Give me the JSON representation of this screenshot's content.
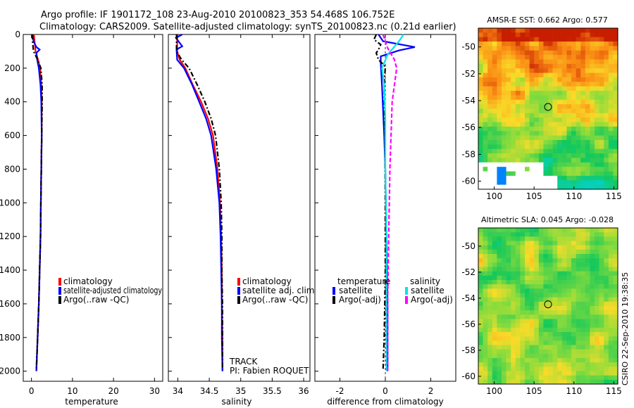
{
  "header": {
    "title_line1": "Argo profile: IF 1901172_108 23-Aug-2010 20100823_353 54.468S 106.752E",
    "title_line2": "Climatology: CARS2009. Satellite-adjusted climatology: synTS_20100823.nc (0.21d earlier)"
  },
  "colors": {
    "climatology": "#ff0000",
    "satellite": "#0000ff",
    "argo": "#000000",
    "salinity_satellite": "#00e5e5",
    "salinity_argo": "#ff00ff"
  },
  "chart_data": [
    {
      "id": "temperature",
      "type": "line",
      "xlabel": "temperature",
      "ylabel": "",
      "xlim": [
        -2,
        32
      ],
      "ylim": [
        2060,
        0
      ],
      "y_reversed": true,
      "xticks": [
        0,
        10,
        20,
        30
      ],
      "xtick_labels": [
        "0",
        "10",
        "20",
        "30"
      ],
      "yticks": [
        0,
        200,
        400,
        600,
        800,
        1000,
        1200,
        1400,
        1600,
        1800,
        2000
      ],
      "ytick_labels": [
        "0",
        "200",
        "400",
        "600",
        "800",
        "1000",
        "1200",
        "1400",
        "1600",
        "1800",
        "2000"
      ],
      "series": [
        {
          "name": "climatology",
          "style": "solid",
          "color_key": "climatology",
          "points": [
            [
              0.6,
              0
            ],
            [
              0.8,
              50
            ],
            [
              1.0,
              100
            ],
            [
              1.6,
              150
            ],
            [
              2.1,
              200
            ],
            [
              2.4,
              300
            ],
            [
              2.5,
              400
            ],
            [
              2.5,
              600
            ],
            [
              2.4,
              800
            ],
            [
              2.3,
              1000
            ],
            [
              2.2,
              1200
            ],
            [
              2.0,
              1400
            ],
            [
              1.8,
              1600
            ],
            [
              1.5,
              1800
            ],
            [
              1.2,
              2000
            ]
          ]
        },
        {
          "name": "satellite-adjusted climatology",
          "style": "solid",
          "color_key": "satellite",
          "points": [
            [
              0.3,
              0
            ],
            [
              0.5,
              40
            ],
            [
              1.2,
              75
            ],
            [
              2.0,
              90
            ],
            [
              1.2,
              110
            ],
            [
              1.4,
              150
            ],
            [
              1.8,
              200
            ],
            [
              2.2,
              300
            ],
            [
              2.4,
              400
            ],
            [
              2.5,
              600
            ],
            [
              2.4,
              800
            ],
            [
              2.3,
              1000
            ],
            [
              2.2,
              1200
            ],
            [
              2.0,
              1400
            ],
            [
              1.8,
              1600
            ],
            [
              1.5,
              1800
            ],
            [
              1.2,
              2000
            ]
          ]
        },
        {
          "name": "Argo(..raw -QC)",
          "style": "dashdot",
          "color_key": "argo",
          "points": [
            [
              0.2,
              0
            ],
            [
              0.3,
              50
            ],
            [
              0.5,
              100
            ],
            [
              1.5,
              150
            ],
            [
              2.3,
              200
            ],
            [
              2.6,
              300
            ],
            [
              2.6,
              400
            ],
            [
              2.5,
              600
            ],
            [
              2.4,
              800
            ],
            [
              2.3,
              1000
            ],
            [
              2.2,
              1200
            ],
            [
              2.0,
              1400
            ],
            [
              1.8,
              1600
            ],
            [
              1.5,
              1800
            ],
            [
              1.2,
              1990
            ]
          ]
        }
      ],
      "legend": {
        "position": "bottom-right",
        "entries": [
          "climatology",
          "satellite-adjusted climatology",
          "Argo(..raw -QC)"
        ]
      }
    },
    {
      "id": "salinity",
      "type": "line",
      "xlabel": "salinity",
      "ylabel": "",
      "xlim": [
        33.85,
        36.1
      ],
      "ylim": [
        2060,
        0
      ],
      "y_reversed": true,
      "xticks": [
        34,
        34.5,
        35,
        35.5,
        36
      ],
      "xtick_labels": [
        "34",
        "34.5",
        "35",
        "35.5",
        "36"
      ],
      "series": [
        {
          "name": "climatology",
          "style": "solid",
          "color_key": "climatology",
          "points": [
            [
              33.99,
              0
            ],
            [
              33.99,
              100
            ],
            [
              34.03,
              150
            ],
            [
              34.12,
              200
            ],
            [
              34.24,
              300
            ],
            [
              34.37,
              400
            ],
            [
              34.48,
              500
            ],
            [
              34.56,
              600
            ],
            [
              34.63,
              800
            ],
            [
              34.67,
              1000
            ],
            [
              34.69,
              1200
            ],
            [
              34.7,
              1400
            ],
            [
              34.7,
              1600
            ],
            [
              34.71,
              1800
            ],
            [
              34.71,
              2000
            ]
          ]
        },
        {
          "name": "satellite adj. clim.",
          "style": "solid",
          "color_key": "satellite",
          "points": [
            [
              34.07,
              0
            ],
            [
              33.97,
              20
            ],
            [
              34.07,
              70
            ],
            [
              33.98,
              90
            ],
            [
              33.99,
              150
            ],
            [
              34.1,
              200
            ],
            [
              34.23,
              300
            ],
            [
              34.34,
              400
            ],
            [
              34.45,
              500
            ],
            [
              34.53,
              600
            ],
            [
              34.61,
              800
            ],
            [
              34.66,
              1000
            ],
            [
              34.68,
              1200
            ],
            [
              34.69,
              1400
            ],
            [
              34.7,
              1600
            ],
            [
              34.7,
              1800
            ],
            [
              34.71,
              2000
            ]
          ]
        },
        {
          "name": "Argo(..raw -QC)",
          "style": "dashdot",
          "color_key": "argo",
          "points": [
            [
              33.98,
              0
            ],
            [
              33.98,
              100
            ],
            [
              34.06,
              150
            ],
            [
              34.18,
              200
            ],
            [
              34.31,
              300
            ],
            [
              34.43,
              400
            ],
            [
              34.53,
              500
            ],
            [
              34.6,
              600
            ],
            [
              34.66,
              800
            ],
            [
              34.69,
              1000
            ],
            [
              34.7,
              1200
            ],
            [
              34.7,
              1400
            ],
            [
              34.71,
              1600
            ],
            [
              34.71,
              1800
            ],
            [
              34.71,
              1990
            ]
          ]
        }
      ],
      "legend": {
        "position": "bottom-right",
        "entries": [
          "climatology",
          "satellite adj. clim.",
          "Argo(..raw -QC)"
        ]
      },
      "annotation": {
        "line1": "TRACK",
        "line2": "PI: Fabien ROQUET"
      }
    },
    {
      "id": "difference",
      "type": "line",
      "xlabel": "difference from climatology",
      "ylabel": "",
      "xlim": [
        -3.1,
        3.1
      ],
      "ylim": [
        2060,
        0
      ],
      "y_reversed": true,
      "xticks": [
        -2,
        0,
        2
      ],
      "xtick_labels": [
        "-2",
        "0",
        "2"
      ],
      "series": [
        {
          "name": "temperature satellite",
          "style": "solid",
          "color_key": "satellite",
          "points": [
            [
              -0.3,
              0
            ],
            [
              -0.1,
              40
            ],
            [
              1.3,
              75
            ],
            [
              0.6,
              95
            ],
            [
              -0.2,
              130
            ],
            [
              -0.2,
              170
            ],
            [
              -0.15,
              300
            ],
            [
              -0.05,
              600
            ],
            [
              0.0,
              800
            ],
            [
              0.05,
              1200
            ],
            [
              0.1,
              1600
            ],
            [
              0.1,
              2000
            ]
          ]
        },
        {
          "name": "temperature Argo(-adj)",
          "style": "dashdot",
          "color_key": "argo",
          "points": [
            [
              -0.4,
              0
            ],
            [
              -0.5,
              30
            ],
            [
              -0.2,
              60
            ],
            [
              -0.3,
              90
            ],
            [
              -0.4,
              110
            ],
            [
              -0.3,
              150
            ],
            [
              0.0,
              190
            ],
            [
              -0.05,
              300
            ],
            [
              -0.02,
              600
            ],
            [
              0.0,
              1000
            ],
            [
              0.0,
              1400
            ],
            [
              -0.05,
              1800
            ],
            [
              -0.1,
              1990
            ]
          ]
        },
        {
          "name": "salinity satellite",
          "style": "solid",
          "color_key": "salinity_satellite",
          "points": [
            [
              0.8,
              0
            ],
            [
              0.6,
              40
            ],
            [
              0.1,
              120
            ],
            [
              -0.15,
              200
            ],
            [
              -0.05,
              300
            ],
            [
              0.0,
              500
            ],
            [
              0.0,
              800
            ],
            [
              0.05,
              1200
            ],
            [
              0.05,
              1600
            ],
            [
              0.05,
              2000
            ]
          ]
        },
        {
          "name": "salinity Argo(-adj)",
          "style": "dashed",
          "color_key": "salinity_argo",
          "points": [
            [
              -0.1,
              0
            ],
            [
              0.1,
              80
            ],
            [
              0.4,
              150
            ],
            [
              0.5,
              200
            ],
            [
              0.4,
              300
            ],
            [
              0.3,
              400
            ],
            [
              0.25,
              600
            ],
            [
              0.2,
              800
            ],
            [
              0.15,
              1200
            ],
            [
              0.1,
              1600
            ],
            [
              0.1,
              2000
            ]
          ]
        }
      ],
      "legend": {
        "position": "bottom",
        "temperature_title": "temperature",
        "salinity_title": "salinity",
        "temperature_entries": [
          "satellite",
          "Argo(-adj)"
        ],
        "salinity_entries": [
          "satellite",
          "Argo(-adj)"
        ]
      }
    },
    {
      "id": "sst_map",
      "type": "heatmap",
      "title": "AMSR-E SST: 0.662 Argo: 0.577",
      "xlim": [
        98,
        115.5
      ],
      "ylim": [
        -60.6,
        -48.6
      ],
      "xticks": [
        100,
        105,
        110,
        115
      ],
      "xtick_labels": [
        "100",
        "105",
        "110",
        "115"
      ],
      "yticks": [
        -50,
        -52,
        -54,
        -56,
        -58,
        -60
      ],
      "ytick_labels": [
        "-50",
        "-52",
        "-54",
        "-56",
        "-58",
        "-60"
      ],
      "marker": {
        "lon": 106.75,
        "lat": -54.47
      }
    },
    {
      "id": "sla_map",
      "type": "heatmap",
      "title": "Altimetric SLA: 0.045 Argo: -0.028",
      "xlim": [
        98,
        115.5
      ],
      "ylim": [
        -60.6,
        -48.6
      ],
      "xticks": [
        100,
        105,
        110,
        115
      ],
      "xtick_labels": [
        "100",
        "105",
        "110",
        "115"
      ],
      "yticks": [
        -50,
        -52,
        -54,
        -56,
        -58,
        -60
      ],
      "ytick_labels": [
        "-50",
        "-52",
        "-54",
        "-56",
        "-58",
        "-60"
      ],
      "marker": {
        "lon": 106.75,
        "lat": -54.47
      }
    }
  ],
  "footer": {
    "credit": "CSIRO 22-Sep-2010 19:38:35"
  }
}
